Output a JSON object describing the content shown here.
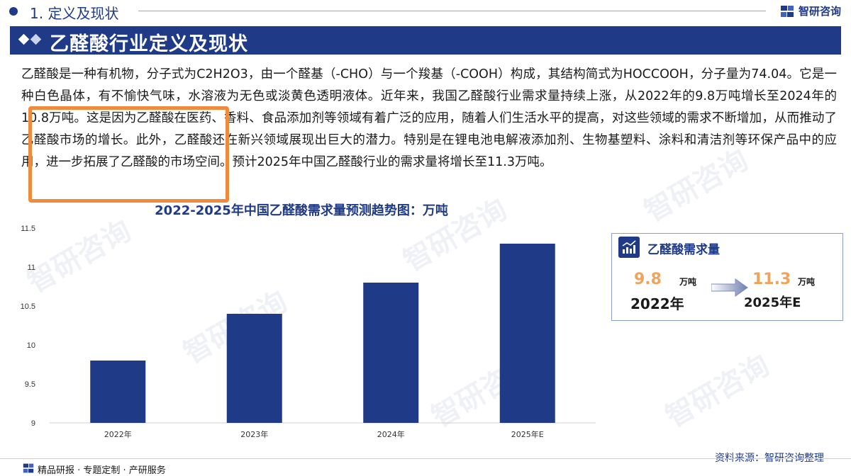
{
  "header": {
    "section_title": "1. 定义及现状",
    "brand_name": "智研咨询",
    "page_title": "乙醛酸行业定义及现状"
  },
  "body_text": "乙醛酸是一种有机物，分子式为C2H2O3，由一个醛基（-CHO）与一个羧基（-COOH）构成，其结构简式为HOCCOOH，分子量为74.04。它是一种白色晶体，有不愉快气味，水溶液为无色或淡黄色透明液体。近年来，我国乙醛酸行业需求量持续上涨，从2022年的9.8万吨增长至2024年的10.8万吨。这是因为乙醛酸在医药、香料、食品添加剂等领域有着广泛的应用，随着人们生活水平的提高，对这些领域的需求不断增加，从而推动了乙醛酸市场的增长。此外，乙醛酸还在新兴领域展现出巨大的潜力。特别是在锂电池电解液添加剂、生物基塑料、涂料和清洁剂等环保产品中的应用，进一步拓展了乙醛酸的市场空间。预计2025年中国乙醛酸行业的需求量将增长至11.3万吨。",
  "chart_data": {
    "type": "bar",
    "title": "2022-2025年中国乙醛酸需求量预测趋势图：万吨",
    "categories": [
      "2022年",
      "2023年",
      "2024年",
      "2025年E"
    ],
    "values": [
      9.8,
      10.4,
      10.8,
      11.3
    ],
    "ylim": [
      9,
      11.5
    ],
    "yticks": [
      9,
      9.5,
      10,
      10.5,
      11,
      11.5
    ],
    "ytick_labels": [
      "9",
      "9.5",
      "10",
      "10.5",
      "11",
      "11.5"
    ],
    "bar_color": "#1f3a87",
    "grid": false,
    "legend": "none"
  },
  "kpi_box": {
    "title": "乙醛酸需求量",
    "start_value": "9.8",
    "start_unit": "万吨",
    "start_year": "2022年",
    "end_value": "11.3",
    "end_unit": "万吨",
    "end_year": "2025年E"
  },
  "footer": {
    "source": "资料来源：智研咨询整理",
    "tagline": "精品研报 · 专题定制 · 产研服务"
  },
  "colors": {
    "brand": "#1f3a87",
    "accent_orange": "#f08a3c",
    "kpi_value": "#f0a35a"
  },
  "watermark_text": "智研咨询"
}
